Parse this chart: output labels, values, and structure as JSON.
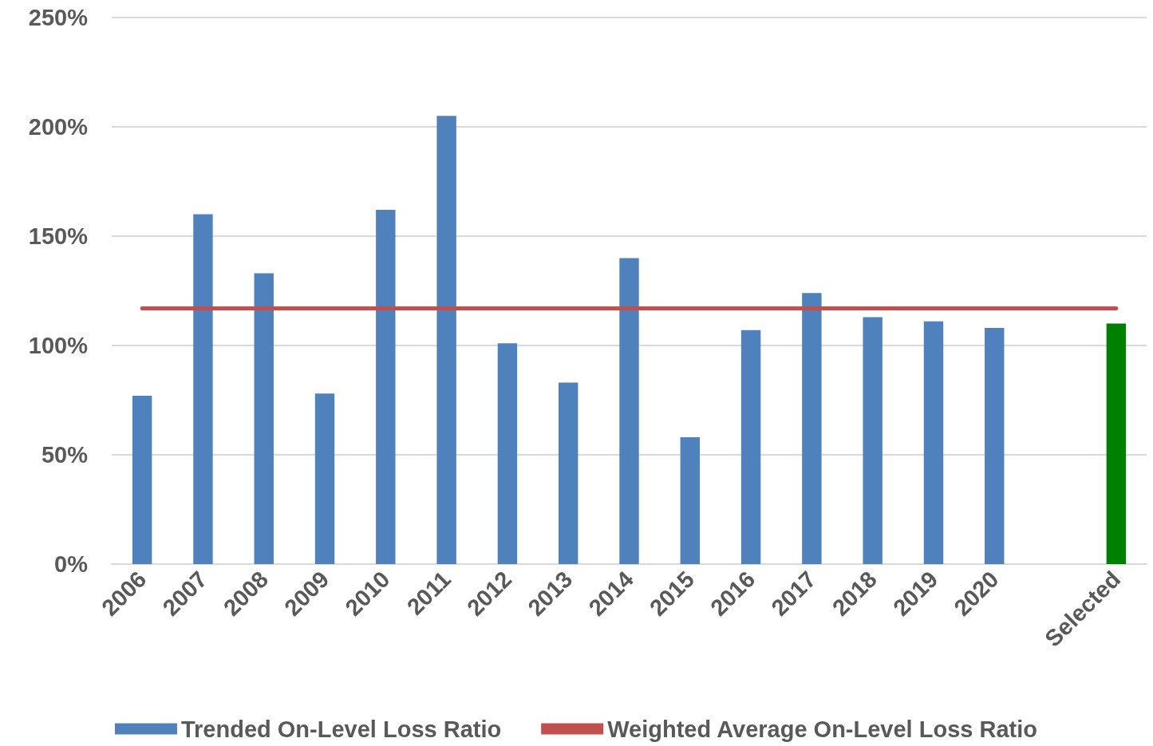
{
  "chart_data": {
    "type": "bar",
    "categories": [
      "2006",
      "2007",
      "2008",
      "2009",
      "2010",
      "2011",
      "2012",
      "2013",
      "2014",
      "2015",
      "2016",
      "2017",
      "2018",
      "2019",
      "2020",
      null,
      "Selected"
    ],
    "series": [
      {
        "name": "Trended On-Level Loss Ratio",
        "color": "#4f81bd",
        "colors": [
          "#4f81bd",
          "#4f81bd",
          "#4f81bd",
          "#4f81bd",
          "#4f81bd",
          "#4f81bd",
          "#4f81bd",
          "#4f81bd",
          "#4f81bd",
          "#4f81bd",
          "#4f81bd",
          "#4f81bd",
          "#4f81bd",
          "#4f81bd",
          "#4f81bd",
          null,
          "#008000"
        ],
        "values": [
          77,
          160,
          133,
          78,
          162,
          205,
          101,
          83,
          140,
          58,
          107,
          124,
          113,
          111,
          108,
          null,
          110
        ]
      },
      {
        "name": "Weighted Average On-Level Loss Ratio",
        "type": "line",
        "color": "#c0504d",
        "values": [
          117,
          117,
          117,
          117,
          117,
          117,
          117,
          117,
          117,
          117,
          117,
          117,
          117,
          117,
          117,
          117,
          117
        ]
      }
    ],
    "ylim": [
      0,
      250
    ],
    "yticks": [
      {
        "value": 0,
        "label": "0%"
      },
      {
        "value": 50,
        "label": "50%"
      },
      {
        "value": 100,
        "label": "100%"
      },
      {
        "value": 150,
        "label": "150%"
      },
      {
        "value": 200,
        "label": "200%"
      },
      {
        "value": 250,
        "label": "250%"
      }
    ],
    "grid": "y",
    "legend": "bottom",
    "marker": "none",
    "line_style": "solid"
  }
}
